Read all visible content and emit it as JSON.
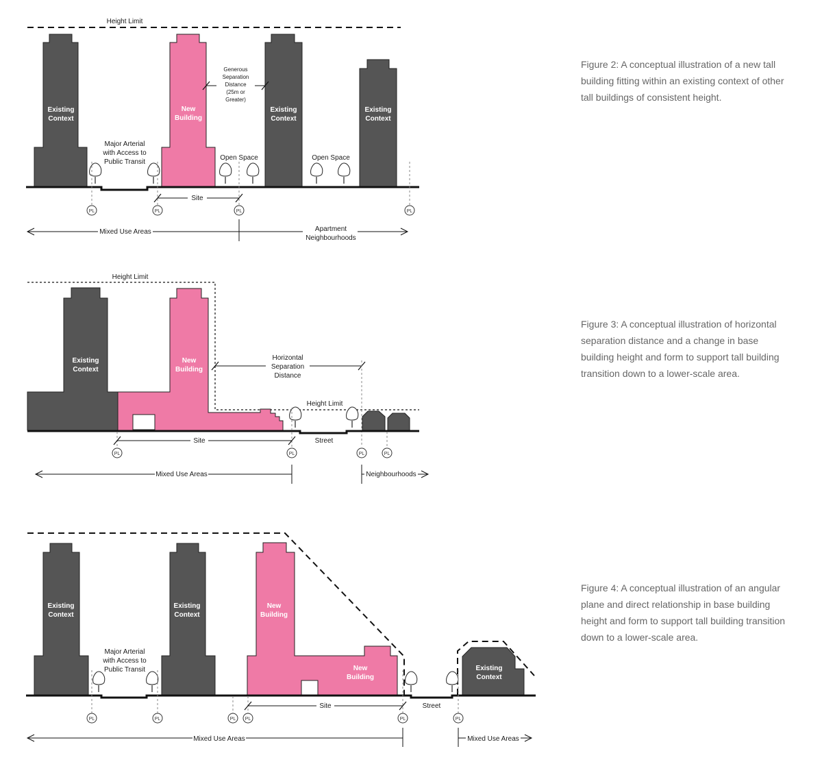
{
  "colors": {
    "existing": "#555555",
    "new_building": "#ef7aa6",
    "ground": "#111111"
  },
  "icons": {
    "tree": "tree-icon",
    "property_line": "property-line-marker"
  },
  "figure2": {
    "height_limit": "Height Limit",
    "existing_1": [
      "Existing",
      "Context"
    ],
    "new_building": [
      "New",
      "Building"
    ],
    "existing_2": [
      "Existing",
      "Context"
    ],
    "existing_3": [
      "Existing",
      "Context"
    ],
    "separation": [
      "Generous",
      "Separation",
      "Distance",
      "(25m or",
      "Greater)"
    ],
    "arterial": [
      "Major Arterial",
      "with Access to",
      "Public Transit"
    ],
    "open_space_1": "Open Space",
    "open_space_2": "Open Space",
    "site": "Site",
    "pl": "PL",
    "mixed_use": "Mixed Use Areas",
    "apartment": [
      "Apartment",
      "Neighbourhoods"
    ],
    "caption": "Figure 2: A conceptual illustration of a new tall building fitting within an existing context of other tall buildings of consistent height."
  },
  "figure3": {
    "height_limit_1": "Height Limit",
    "height_limit_2": "Height Limit",
    "existing": [
      "Existing",
      "Context"
    ],
    "new_building": [
      "New",
      "Building"
    ],
    "separation": [
      "Horizontal",
      "Separation",
      "Distance"
    ],
    "site": "Site",
    "street": "Street",
    "pl": "PL",
    "mixed_use": "Mixed Use Areas",
    "neighbourhoods": "Neighbourhoods",
    "caption": "Figure 3: A conceptual illustration of horizontal separation distance and a change in base building height and form to support tall building transition down to a lower-scale area."
  },
  "figure4": {
    "existing_1": [
      "Existing",
      "Context"
    ],
    "existing_2": [
      "Existing",
      "Context"
    ],
    "new_building": [
      "New",
      "Building"
    ],
    "new_building_base": [
      "New",
      "Building"
    ],
    "existing_3": [
      "Existing",
      "Context"
    ],
    "arterial": [
      "Major Arterial",
      "with Access to",
      "Public Transit"
    ],
    "site": "Site",
    "street": "Street",
    "pl": "PL",
    "mixed_use_1": "Mixed Use Areas",
    "mixed_use_2": "Mixed Use Areas",
    "caption": "Figure 4: A conceptual illustration of an angular plane and direct relationship in base building height and form to support tall building transition down to a lower-scale area."
  }
}
